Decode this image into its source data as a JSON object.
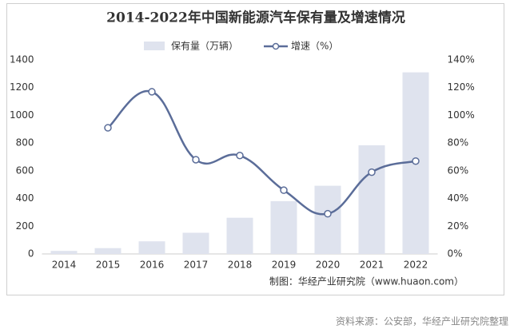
{
  "chart_data": {
    "type": "bar-line",
    "title": "2014-2022年中国新能源汽车保有量及增速情况",
    "categories": [
      "2014",
      "2015",
      "2016",
      "2017",
      "2018",
      "2019",
      "2020",
      "2021",
      "2022"
    ],
    "series": [
      {
        "name": "保有量（万辆）",
        "type": "bar",
        "color": "#dfe3ee",
        "values": [
          22,
          42,
          91,
          153,
          261,
          381,
          492,
          784,
          1310
        ]
      },
      {
        "name": "增速（%）",
        "type": "line",
        "axis": "y2",
        "color": "#5b6d99",
        "values": [
          null,
          91,
          117,
          68,
          71,
          46,
          29,
          59,
          67
        ]
      }
    ],
    "ylim": [
      0,
      1400
    ],
    "yticks": [
      0,
      200,
      400,
      600,
      800,
      1000,
      1200,
      1400
    ],
    "y2lim": [
      0,
      140
    ],
    "y2ticks": [
      {
        "value": 0,
        "label": "0%"
      },
      {
        "value": 20,
        "label": "20%"
      },
      {
        "value": 40,
        "label": "40%"
      },
      {
        "value": 60,
        "label": "60%"
      },
      {
        "value": 80,
        "label": "80%"
      },
      {
        "value": 100,
        "label": "100%"
      },
      {
        "value": 120,
        "label": "120%"
      },
      {
        "value": 140,
        "label": "140%"
      }
    ],
    "credit": "制图：华经产业研究院（www.huaon.com）",
    "source": "资料来源：公安部，华经产业研究院整理"
  }
}
